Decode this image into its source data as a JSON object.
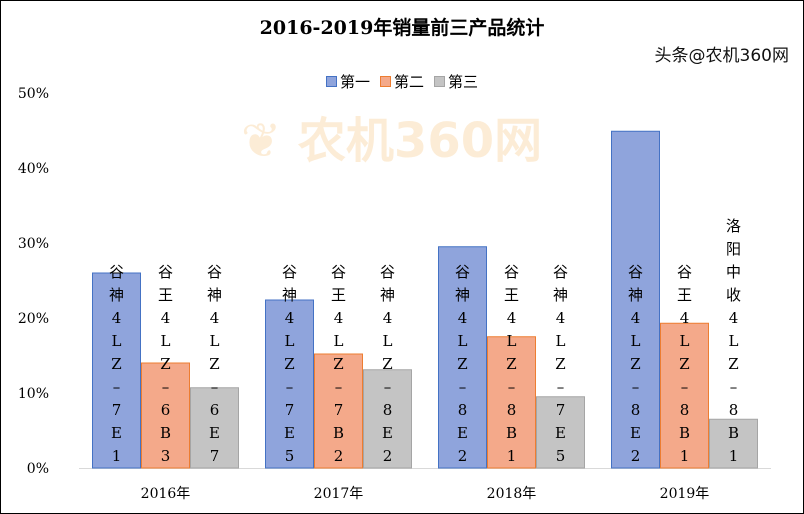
{
  "chart_data": {
    "type": "bar",
    "title": "2016-2019年销量前三产品统计",
    "categories": [
      "2016年",
      "2017年",
      "2018年",
      "2019年"
    ],
    "ylim": [
      0,
      50
    ],
    "yticks": [
      "0%",
      "10%",
      "20%",
      "30%",
      "40%",
      "50%"
    ],
    "legend_position": "top",
    "grid": false,
    "series": [
      {
        "name": "第一",
        "color": "#8fa4dc",
        "values": [
          26.0,
          22.4,
          29.5,
          44.9
        ],
        "labels": [
          "谷神4LZ-7E1",
          "谷神4LZ-7E5",
          "谷神4LZ-8E2",
          "谷神4LZ-8E2"
        ]
      },
      {
        "name": "第二",
        "color": "#f4a98a",
        "values": [
          14.0,
          15.2,
          17.5,
          19.3
        ],
        "labels": [
          "谷王4LZ-6B3",
          "谷王4LZ-7B2",
          "谷王4LZ-8B1",
          "谷王4LZ-8B1"
        ]
      },
      {
        "name": "第三",
        "color": "#c4c4c4",
        "values": [
          10.7,
          13.1,
          9.5,
          6.5
        ],
        "labels": [
          "谷神4LZ-6E7",
          "谷神4LZ-8E2",
          "谷神4LZ-7E5",
          "洛阳中收4LZ-8B1"
        ]
      }
    ]
  },
  "watermark": "农机360网",
  "footer": "头条@农机360网"
}
